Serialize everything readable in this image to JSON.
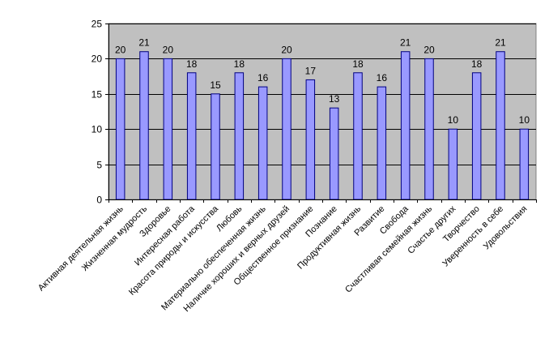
{
  "chart_data": {
    "type": "bar",
    "title": "",
    "xlabel": "",
    "ylabel": "",
    "ylim": [
      0,
      25
    ],
    "yticks": [
      "0",
      "5",
      "10",
      "15",
      "20",
      "25"
    ],
    "grid": true,
    "legend": "none",
    "colors": {
      "plot_bg": "#c0c0c0",
      "bar_fill": "#9999ff",
      "bar_stroke": "#000080",
      "grid": "#000000"
    },
    "categories": [
      "Активная деятельная жизнь",
      "Жизненная мудрость",
      "Здоровье",
      "Интересная работа",
      "Красота природы и искусства",
      "Любовь",
      "Материально обеспеченная жизнь",
      "Наличие хороших и верных друзей",
      "Общественное признание",
      "Познание",
      "Продуктивная жизнь",
      "Развитие",
      "Свобода",
      "Счастливая семейная жизнь",
      "Счастье других",
      "Творчество",
      "Уверенность в себе",
      "Удовольствия"
    ],
    "values": [
      20,
      21,
      20,
      18,
      15,
      18,
      16,
      20,
      17,
      13,
      18,
      16,
      21,
      20,
      10,
      18,
      21,
      10
    ],
    "value_labels": [
      "20",
      "21",
      "20",
      "18",
      "15",
      "18",
      "16",
      "20",
      "17",
      "13",
      "18",
      "16",
      "21",
      "20",
      "10",
      "18",
      "21",
      "10"
    ]
  }
}
